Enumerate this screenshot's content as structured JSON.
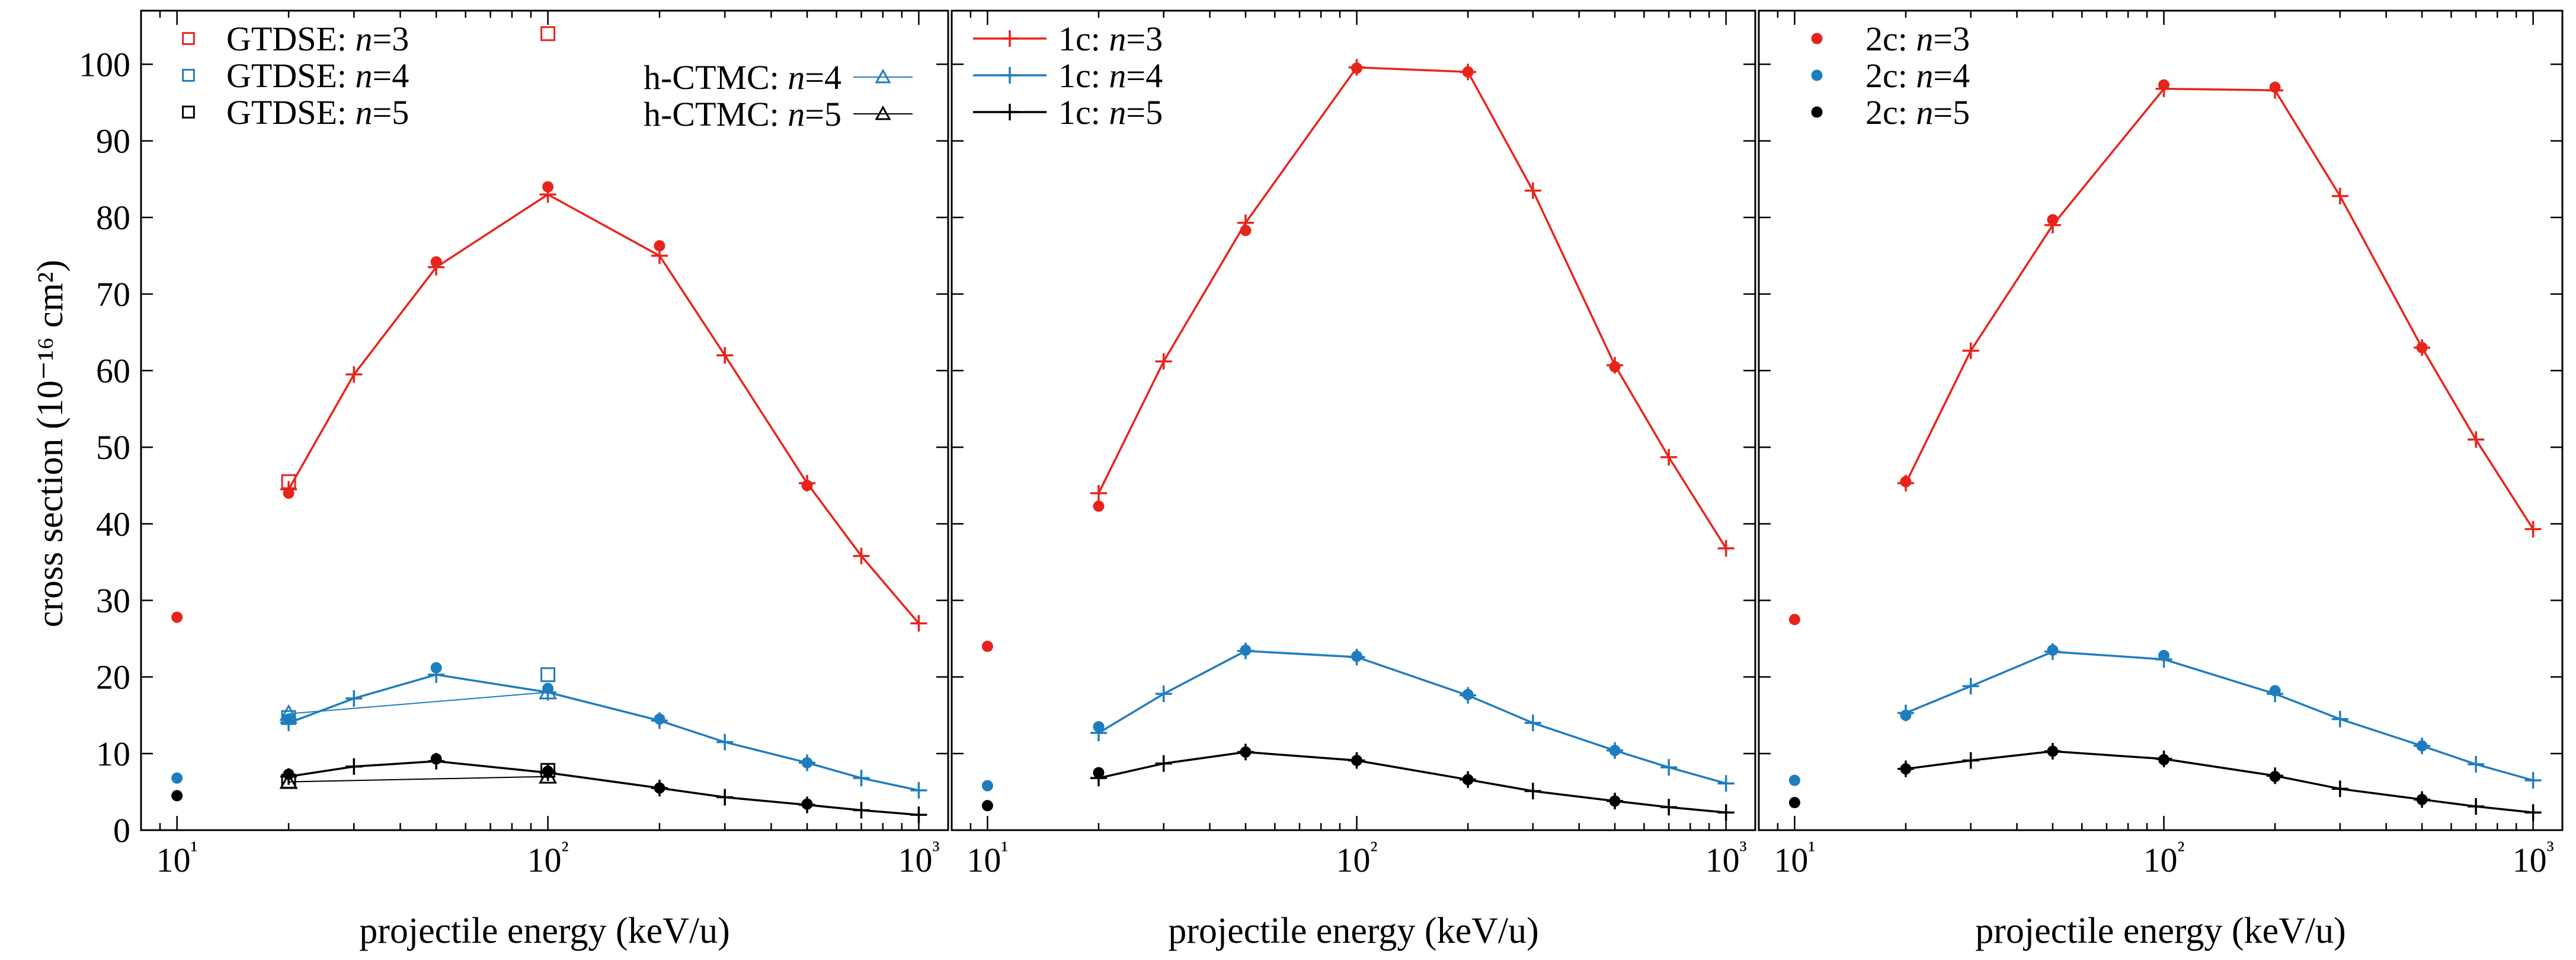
{
  "colors": {
    "n3": "#e8231b",
    "n4": "#1f7dbf",
    "n5": "#000000"
  },
  "chart_data": [
    {
      "type": "line",
      "panel": "left",
      "xscale": "log",
      "xlim": [
        8,
        1200
      ],
      "ylim": [
        0,
        107
      ],
      "xlabel": "projectile energy (keV/u)",
      "ylabel": "cross section (10⁻¹⁶ cm²)",
      "xticks": [
        10,
        100,
        1000
      ],
      "xtick_labels": [
        "10¹",
        "10²",
        "10³"
      ],
      "yticks": [
        0,
        10,
        20,
        30,
        40,
        50,
        60,
        70,
        80,
        90,
        100
      ],
      "legend": [
        {
          "label": "GTDSE: n=3",
          "prefix": "GTDSE: ",
          "n": "3",
          "series": "GTDSE n=3"
        },
        {
          "label": "GTDSE: n=4",
          "prefix": "GTDSE: ",
          "n": "4",
          "series": "GTDSE n=4"
        },
        {
          "label": "GTDSE: n=5",
          "prefix": "GTDSE: ",
          "n": "5",
          "series": "GTDSE n=5"
        },
        {
          "label": "h-CTMC: n=4",
          "prefix": "h-CTMC: ",
          "n": "4",
          "series": "h-CTMC n=4"
        },
        {
          "label": "h-CTMC: n=5",
          "prefix": "h-CTMC: ",
          "n": "5",
          "series": "h-CTMC n=5"
        }
      ],
      "series": [
        {
          "name": "1c n=3",
          "color": "n3",
          "marker": "plus",
          "line": true,
          "x": [
            20,
            30,
            50,
            100,
            200,
            300,
            500,
            700,
            1000
          ],
          "y": [
            44.5,
            59.5,
            73.5,
            83.0,
            75.0,
            62.0,
            45.3,
            35.8,
            27.0
          ]
        },
        {
          "name": "1c n=4",
          "color": "n4",
          "marker": "plus",
          "line": true,
          "x": [
            20,
            30,
            50,
            100,
            200,
            300,
            500,
            700,
            1000
          ],
          "y": [
            14.0,
            17.2,
            20.3,
            18.0,
            14.3,
            11.5,
            8.8,
            6.8,
            5.2
          ]
        },
        {
          "name": "1c n=5",
          "color": "n5",
          "marker": "plus",
          "line": true,
          "x": [
            20,
            30,
            50,
            100,
            200,
            300,
            500,
            700,
            1000
          ],
          "y": [
            7.0,
            8.3,
            9.0,
            7.5,
            5.5,
            4.3,
            3.3,
            2.6,
            2.0
          ]
        },
        {
          "name": "2c n=3",
          "color": "n3",
          "marker": "dot",
          "line": false,
          "x": [
            10,
            20,
            50,
            100,
            200,
            500
          ],
          "y": [
            27.8,
            44.0,
            74.2,
            84.0,
            76.3,
            45.0
          ]
        },
        {
          "name": "2c n=4",
          "color": "n4",
          "marker": "dot",
          "line": false,
          "x": [
            10,
            20,
            50,
            100,
            200,
            500
          ],
          "y": [
            6.8,
            14.5,
            21.2,
            18.5,
            14.5,
            8.8
          ]
        },
        {
          "name": "2c n=5",
          "color": "n5",
          "marker": "dot",
          "line": false,
          "x": [
            10,
            20,
            50,
            100,
            200,
            500
          ],
          "y": [
            4.5,
            7.3,
            9.3,
            7.7,
            5.5,
            3.4
          ]
        },
        {
          "name": "GTDSE n=3",
          "color": "n3",
          "marker": "square",
          "line": false,
          "x": [
            20,
            100
          ],
          "y": [
            45.5,
            104.0
          ]
        },
        {
          "name": "GTDSE n=4",
          "color": "n4",
          "marker": "square",
          "line": false,
          "x": [
            20,
            100
          ],
          "y": [
            14.7,
            20.3
          ]
        },
        {
          "name": "GTDSE n=5",
          "color": "n5",
          "marker": "square",
          "line": false,
          "x": [
            20,
            100
          ],
          "y": [
            6.4,
            7.8
          ]
        },
        {
          "name": "h-CTMC n=4",
          "color": "n4",
          "marker": "triangle",
          "line": true,
          "thin": true,
          "x": [
            20,
            100
          ],
          "y": [
            15.2,
            18.0
          ]
        },
        {
          "name": "h-CTMC n=5",
          "color": "n5",
          "marker": "triangle",
          "line": true,
          "thin": true,
          "x": [
            20,
            100
          ],
          "y": [
            6.3,
            7.0
          ]
        }
      ]
    },
    {
      "type": "line",
      "panel": "middle",
      "xscale": "log",
      "xlim": [
        8,
        1200
      ],
      "ylim": [
        0,
        107
      ],
      "xlabel": "projectile energy (keV/u)",
      "xticks": [
        10,
        100,
        1000
      ],
      "xtick_labels": [
        "10¹",
        "10²",
        "10³"
      ],
      "legend": [
        {
          "label": "1c: n=3",
          "prefix": "1c: ",
          "n": "3",
          "series": "1c n=3"
        },
        {
          "label": "1c: n=4",
          "prefix": "1c: ",
          "n": "4",
          "series": "1c n=4"
        },
        {
          "label": "1c: n=5",
          "prefix": "1c: ",
          "n": "5",
          "series": "1c n=5"
        }
      ],
      "series": [
        {
          "name": "1c n=3",
          "color": "n3",
          "marker": "plus",
          "line": true,
          "x": [
            20,
            30,
            50,
            100,
            200,
            300,
            500,
            700,
            1000
          ],
          "y": [
            44.0,
            61.2,
            79.3,
            99.6,
            99.0,
            83.5,
            60.7,
            48.7,
            36.8
          ]
        },
        {
          "name": "1c n=4",
          "color": "n4",
          "marker": "plus",
          "line": true,
          "x": [
            20,
            30,
            50,
            100,
            200,
            300,
            500,
            700,
            1000
          ],
          "y": [
            12.7,
            17.8,
            23.4,
            22.6,
            17.6,
            14.0,
            10.4,
            8.2,
            6.1
          ]
        },
        {
          "name": "1c n=5",
          "color": "n5",
          "marker": "plus",
          "line": true,
          "x": [
            20,
            30,
            50,
            100,
            200,
            300,
            500,
            700,
            1000
          ],
          "y": [
            6.8,
            8.7,
            10.2,
            9.1,
            6.6,
            5.1,
            3.8,
            3.0,
            2.3
          ]
        },
        {
          "name": "2c n=3",
          "color": "n3",
          "marker": "dot",
          "line": false,
          "x": [
            10,
            20,
            50,
            100,
            200,
            500
          ],
          "y": [
            24.0,
            42.3,
            78.3,
            99.5,
            99.0,
            60.5
          ]
        },
        {
          "name": "2c n=4",
          "color": "n4",
          "marker": "dot",
          "line": false,
          "x": [
            10,
            20,
            50,
            100,
            200,
            500
          ],
          "y": [
            5.8,
            13.5,
            23.5,
            22.7,
            17.7,
            10.4
          ]
        },
        {
          "name": "2c n=5",
          "color": "n5",
          "marker": "dot",
          "line": false,
          "x": [
            10,
            20,
            50,
            100,
            200,
            500
          ],
          "y": [
            3.2,
            7.5,
            10.2,
            9.1,
            6.6,
            3.8
          ]
        }
      ]
    },
    {
      "type": "line",
      "panel": "right",
      "xscale": "log",
      "xlim": [
        8,
        1200
      ],
      "ylim": [
        0,
        107
      ],
      "xlabel": "projectile energy (keV/u)",
      "xticks": [
        10,
        100,
        1000
      ],
      "xtick_labels": [
        "10¹",
        "10²",
        "10³"
      ],
      "legend": [
        {
          "label": "2c: n=3",
          "prefix": "2c: ",
          "n": "3",
          "series": "2c n=3"
        },
        {
          "label": "2c: n=4",
          "prefix": "2c: ",
          "n": "4",
          "series": "2c n=4"
        },
        {
          "label": "2c: n=5",
          "prefix": "2c: ",
          "n": "5",
          "series": "2c n=5"
        }
      ],
      "series": [
        {
          "name": "1c n=3",
          "color": "n3",
          "marker": "plus",
          "line": true,
          "x": [
            20,
            30,
            50,
            100,
            200,
            300,
            500,
            700,
            1000
          ],
          "y": [
            45.3,
            62.6,
            79.0,
            96.8,
            96.6,
            82.8,
            63.0,
            51.0,
            39.3
          ]
        },
        {
          "name": "1c n=4",
          "color": "n4",
          "marker": "plus",
          "line": true,
          "x": [
            20,
            30,
            50,
            100,
            200,
            300,
            500,
            700,
            1000
          ],
          "y": [
            15.3,
            18.8,
            23.3,
            22.3,
            17.8,
            14.5,
            11.0,
            8.6,
            6.5
          ]
        },
        {
          "name": "1c n=5",
          "color": "n5",
          "marker": "plus",
          "line": true,
          "x": [
            20,
            30,
            50,
            100,
            200,
            300,
            500,
            700,
            1000
          ],
          "y": [
            8.0,
            9.1,
            10.3,
            9.3,
            7.1,
            5.4,
            4.0,
            3.1,
            2.3
          ]
        },
        {
          "name": "2c n=3",
          "color": "n3",
          "marker": "dot",
          "line": false,
          "x": [
            10,
            20,
            50,
            100,
            200,
            500
          ],
          "y": [
            27.5,
            45.5,
            79.7,
            97.3,
            97.0,
            63.0
          ]
        },
        {
          "name": "2c n=4",
          "color": "n4",
          "marker": "dot",
          "line": false,
          "x": [
            10,
            20,
            50,
            100,
            200,
            500
          ],
          "y": [
            6.5,
            15.0,
            23.5,
            22.8,
            18.2,
            11.0
          ]
        },
        {
          "name": "2c n=5",
          "color": "n5",
          "marker": "dot",
          "line": false,
          "x": [
            10,
            20,
            50,
            100,
            200,
            500
          ],
          "y": [
            3.6,
            8.0,
            10.3,
            9.2,
            7.0,
            4.0
          ]
        }
      ]
    }
  ]
}
